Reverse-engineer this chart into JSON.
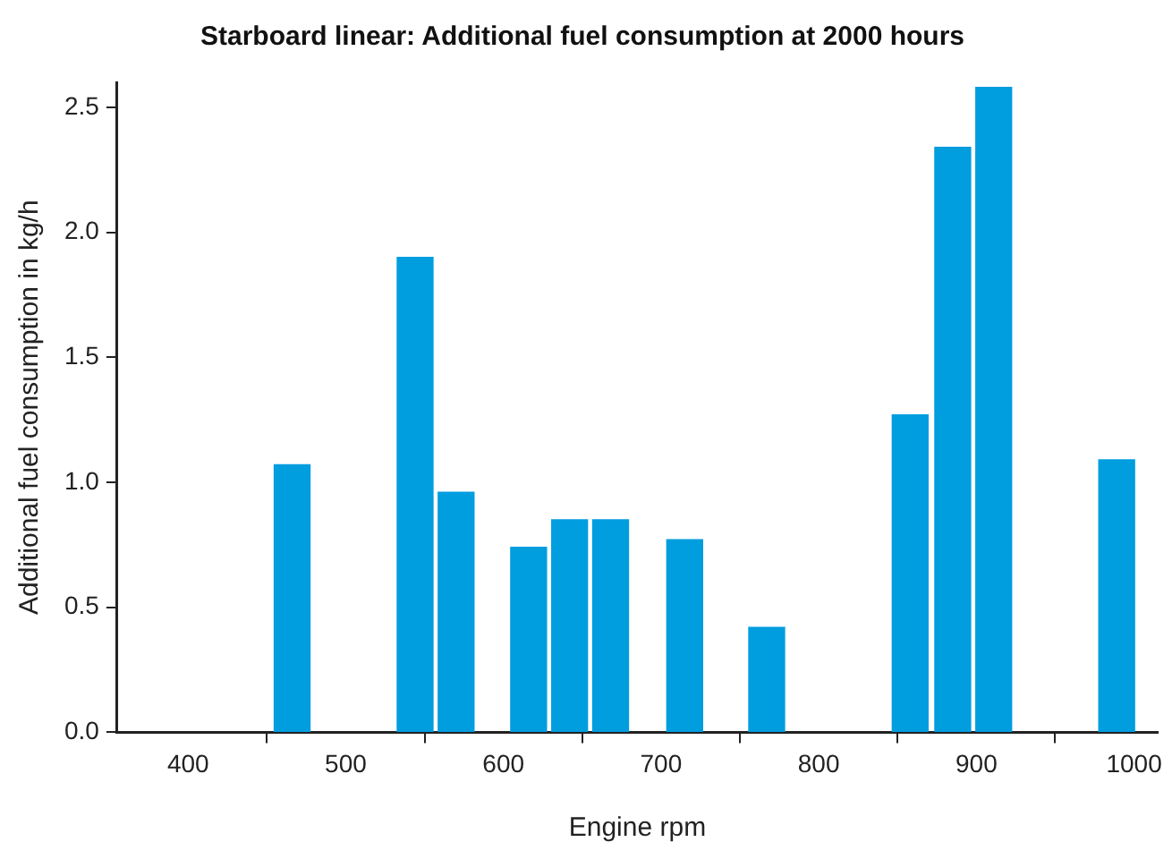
{
  "chart_data": {
    "type": "bar",
    "title": "Starboard linear: Additional fuel consumption at 2000 hours",
    "xlabel": "Engine rpm",
    "ylabel": "Additional fuel consumption in kg/h",
    "x": [
      466,
      544,
      570,
      616,
      642,
      668,
      715,
      767,
      858,
      885,
      911,
      989
    ],
    "values": [
      1.07,
      1.9,
      0.96,
      0.74,
      0.85,
      0.85,
      0.77,
      0.42,
      1.27,
      2.34,
      2.58,
      1.09
    ],
    "color": "#009ddf",
    "xlim": [
      355,
      1015
    ],
    "xticks": [
      400,
      500,
      600,
      700,
      800,
      900,
      1000
    ],
    "ylim": [
      0,
      2.6
    ],
    "yticks": [
      {
        "value": 0,
        "label": "0.0"
      },
      0.5,
      {
        "value": 1,
        "label": "1.0"
      },
      1.5,
      {
        "value": 2,
        "label": "2.0"
      },
      2.5
    ],
    "grid": false,
    "legend": false
  }
}
